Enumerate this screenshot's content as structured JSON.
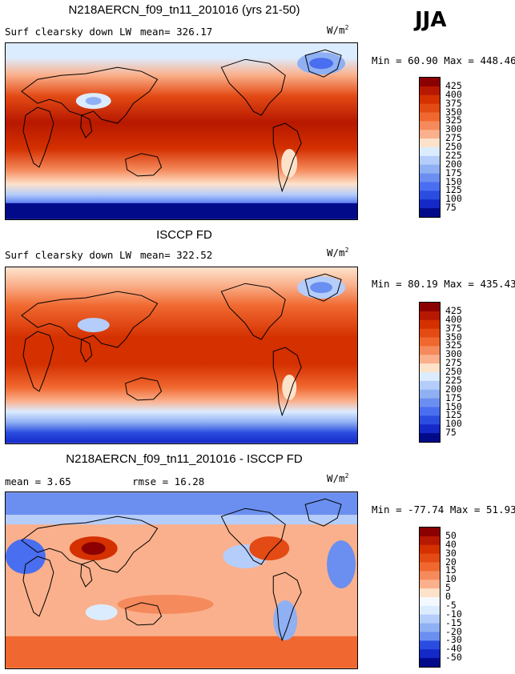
{
  "season": "JJA",
  "panels": [
    {
      "title": "N218AERCN_f09_tn11_201016 (yrs 21-50)",
      "left_label": "Surf clearsky down LW",
      "mid_label": "mean= 326.17",
      "units_main": "W/m",
      "units_sup": "2",
      "minmax": "Min =  60.90 Max = 448.46",
      "legend": [
        "425",
        "400",
        "375",
        "350",
        "325",
        "300",
        "275",
        "250",
        "225",
        "200",
        "175",
        "150",
        "125",
        "100",
        "75"
      ],
      "colors": [
        "#8b0000",
        "#b71800",
        "#d43000",
        "#e34a14",
        "#f0682f",
        "#f58a5c",
        "#fab08c",
        "#fde2ca",
        "#dcecff",
        "#b4cdfa",
        "#8fb0f2",
        "#6a8ff0",
        "#4a6ef0",
        "#2a4de0",
        "#1528c8",
        "#020a8a"
      ]
    },
    {
      "title": "ISCCP FD",
      "left_label": "Surf clearsky down LW",
      "mid_label": "mean= 322.52",
      "units_main": "W/m",
      "units_sup": "2",
      "minmax": "Min =  80.19 Max = 435.43",
      "legend": [
        "425",
        "400",
        "375",
        "350",
        "325",
        "300",
        "275",
        "250",
        "225",
        "200",
        "175",
        "150",
        "125",
        "100",
        "75"
      ],
      "colors": [
        "#8b0000",
        "#b71800",
        "#d43000",
        "#e34a14",
        "#f0682f",
        "#f58a5c",
        "#fab08c",
        "#fde2ca",
        "#dcecff",
        "#b4cdfa",
        "#8fb0f2",
        "#6a8ff0",
        "#4a6ef0",
        "#2a4de0",
        "#1528c8",
        "#020a8a"
      ]
    },
    {
      "title": "N218AERCN_f09_tn11_201016 - ISCCP FD",
      "left_label": "mean =   3.65",
      "mid_label": "rmse =  16.28",
      "units_main": "W/m",
      "units_sup": "2",
      "minmax": "Min = -77.74 Max =  51.93",
      "legend": [
        "50",
        "40",
        "30",
        "20",
        "15",
        "10",
        "5",
        "0",
        "-5",
        "-10",
        "-15",
        "-20",
        "-30",
        "-40",
        "-50"
      ],
      "colors": [
        "#8b0000",
        "#b71800",
        "#d43000",
        "#e34a14",
        "#f0682f",
        "#f58a5c",
        "#fab08c",
        "#fde2ca",
        "#f4f8ff",
        "#dcecff",
        "#b4cdfa",
        "#8fb0f2",
        "#6a8ff0",
        "#2a4de0",
        "#1528c8",
        "#020a8a"
      ]
    }
  ]
}
